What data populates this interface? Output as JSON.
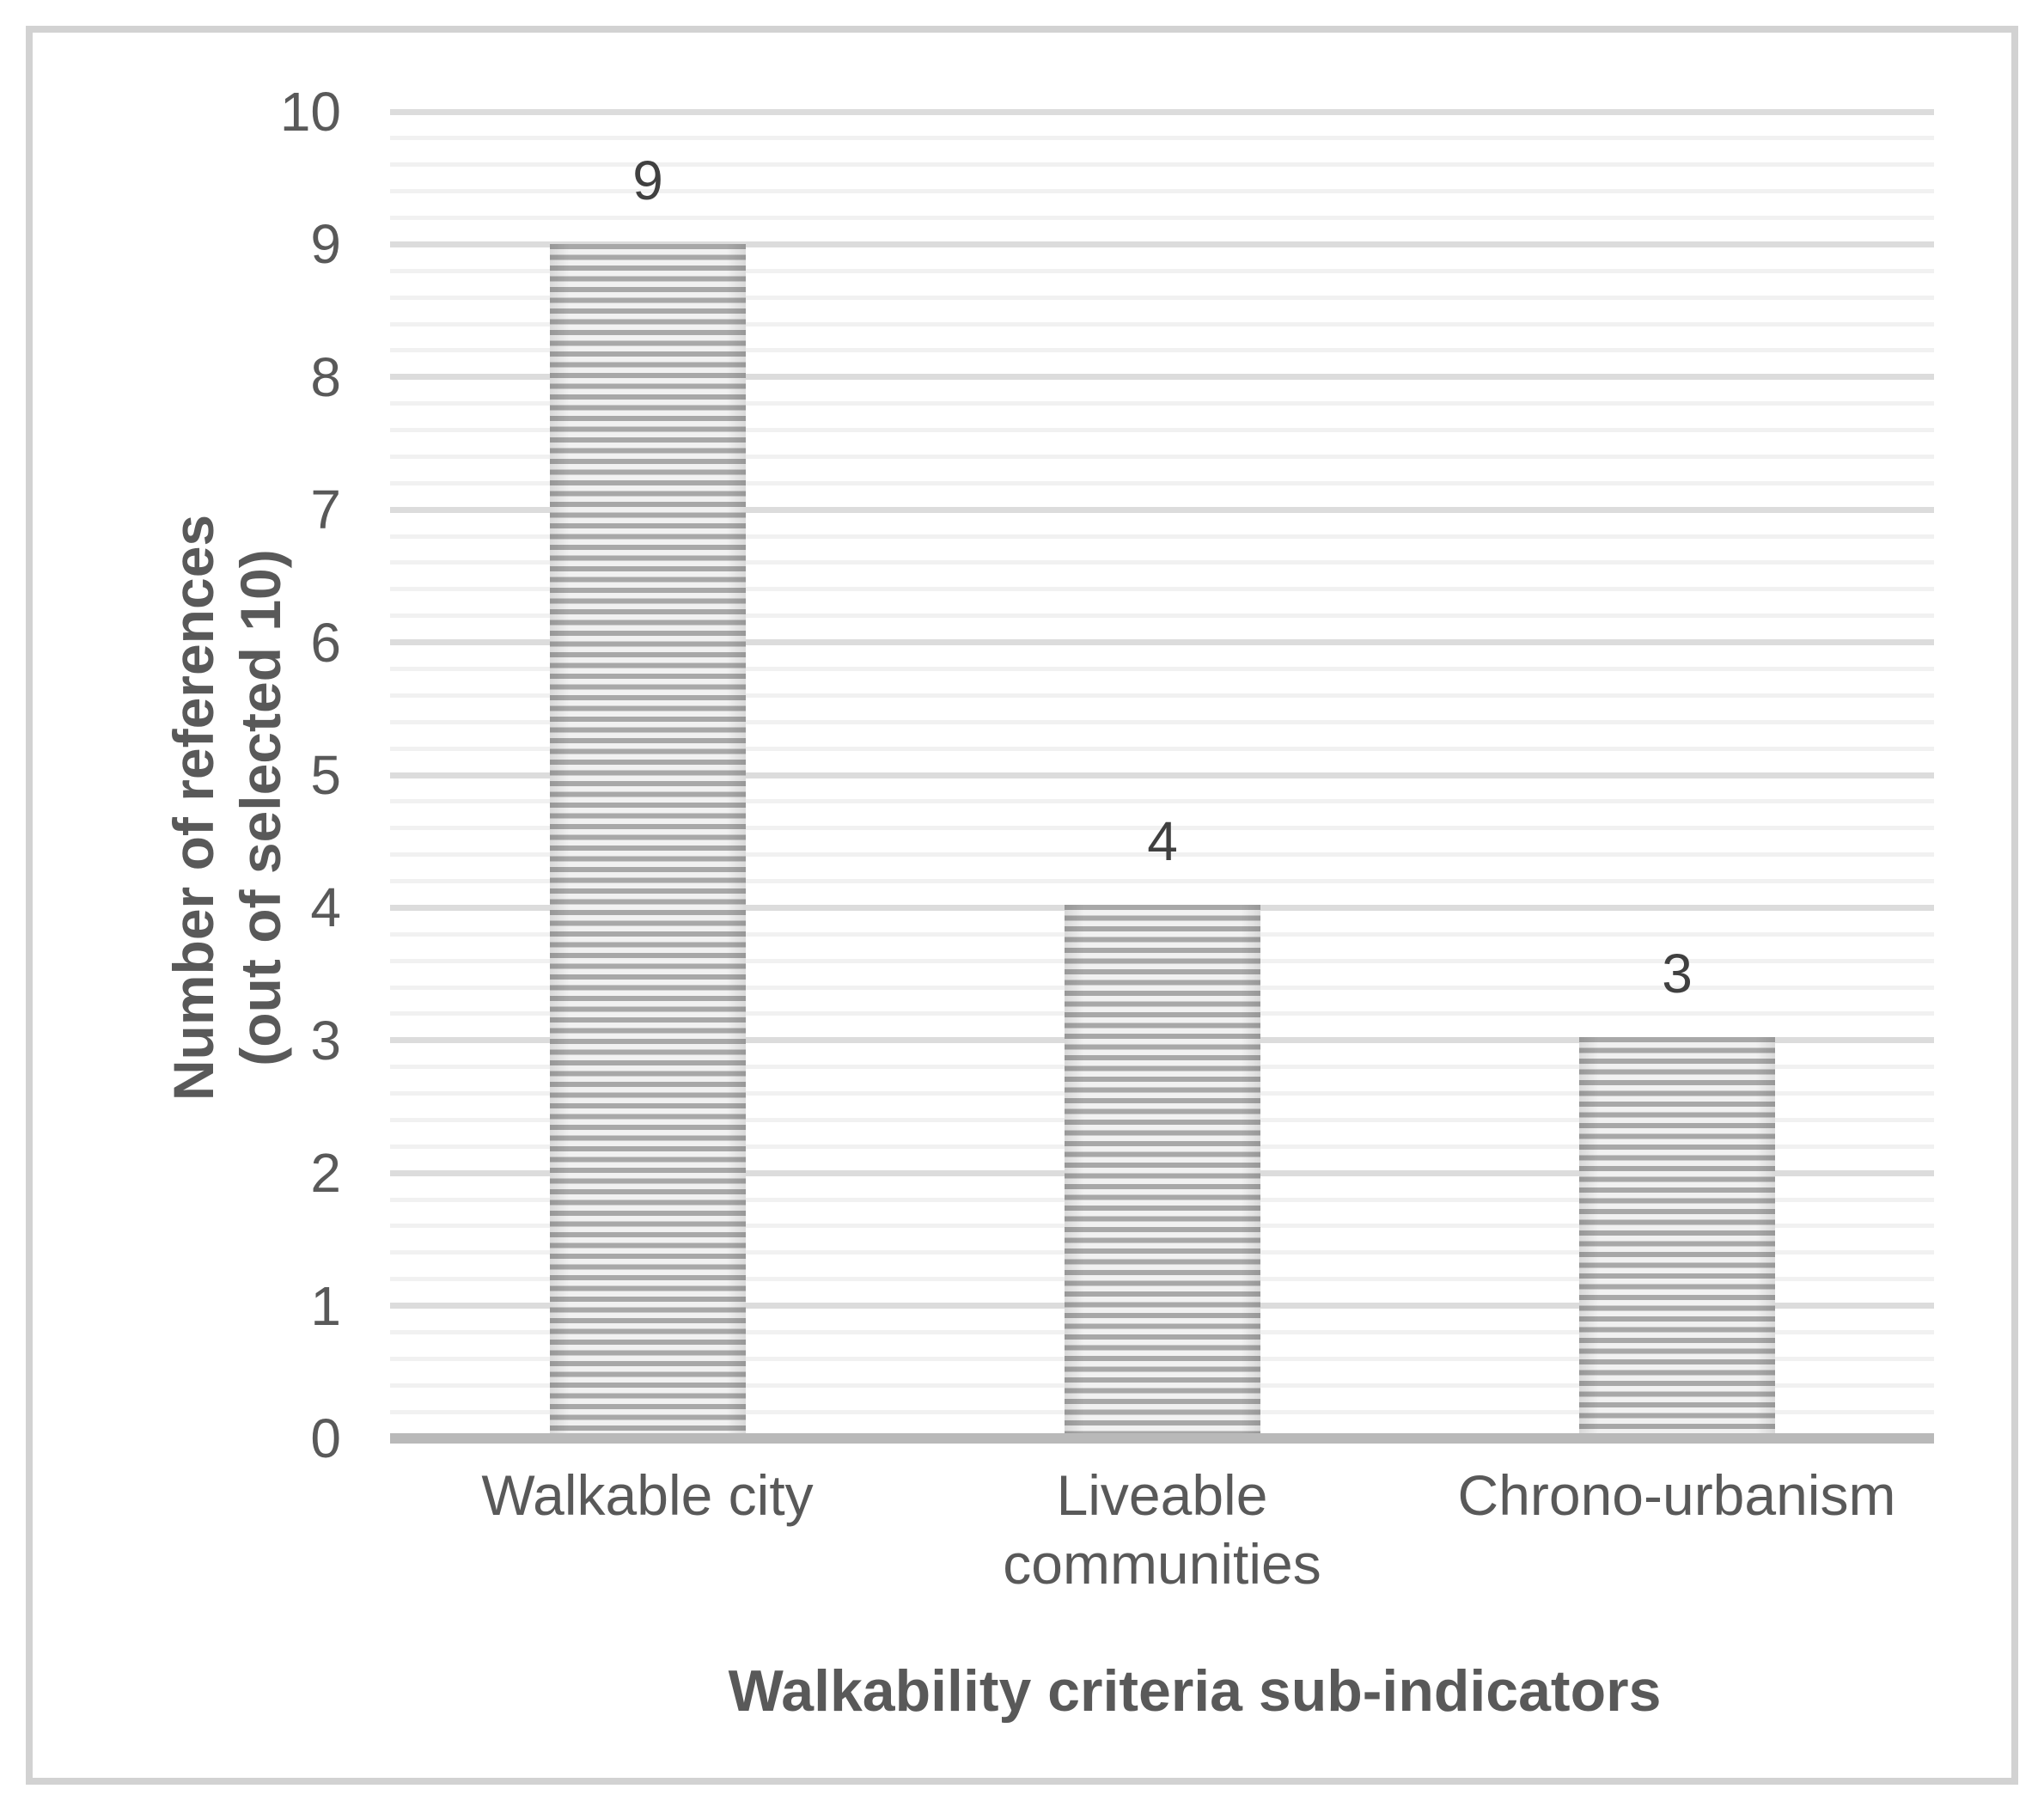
{
  "chart_data": {
    "type": "bar",
    "title": "",
    "categories": [
      "Walkable city",
      "Liveable communities",
      "Chrono-urbanism"
    ],
    "values": [
      9,
      4,
      3
    ],
    "data_labels": [
      "9",
      "4",
      "3"
    ],
    "xlabel": "Walkability criteria sub-indicators",
    "ylabel": "Number of references (out of selected 10)",
    "ylabel_lines": [
      "Number of references",
      "(out of selected 10)"
    ],
    "yticks": [
      0,
      1,
      2,
      3,
      4,
      5,
      6,
      7,
      8,
      9,
      10
    ],
    "ylim": [
      0,
      10
    ],
    "y_major_unit": 1,
    "y_minor_unit": 0.2,
    "grid": "horizontal major and minor gridlines on",
    "legend": "none",
    "bar_fill": "horizontal-stripe pattern",
    "colors": {
      "bar_stripe": "#a8a8a8",
      "bar_stripe_background": "#f1f1f1",
      "major_gridline": "#dcdcdc",
      "minor_gridline": "#f1f1f1",
      "axis_line": "#b9b9b9",
      "axis_text": "#595959",
      "data_label_text": "#404040",
      "frame_border": "#d2d2d2",
      "background": "#ffffff"
    }
  }
}
